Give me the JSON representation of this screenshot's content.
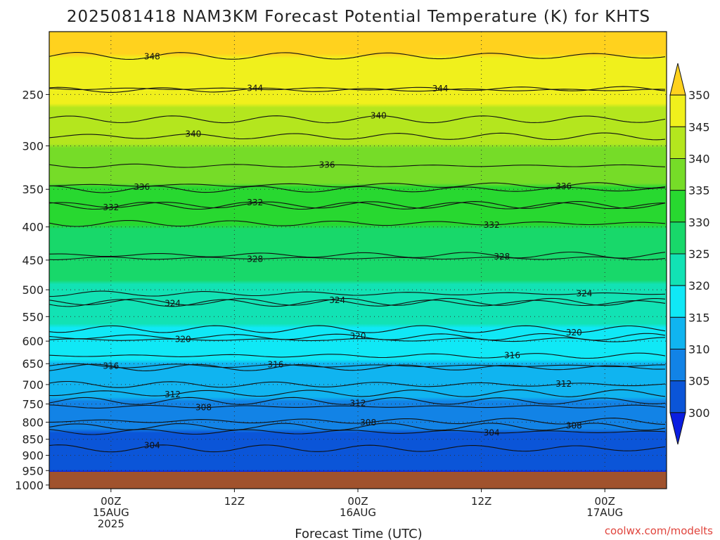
{
  "chart_data": {
    "type": "heatmap",
    "title": "2025081418 NAM3KM Forecast Potential Temperature (K) for KHTS",
    "xlabel": "Forecast Time (UTC)",
    "ylabel": "",
    "credit": "coolwx.com/modelts",
    "x_ticks": [
      {
        "hour": 6,
        "lines": [
          "00Z",
          "15AUG",
          "2025"
        ]
      },
      {
        "hour": 18,
        "lines": [
          "12Z"
        ]
      },
      {
        "hour": 30,
        "lines": [
          "00Z",
          "16AUG"
        ]
      },
      {
        "hour": 42,
        "lines": [
          "12Z"
        ]
      },
      {
        "hour": 54,
        "lines": [
          "00Z",
          "17AUG"
        ]
      }
    ],
    "x_range_hours": [
      0,
      60
    ],
    "y_ticks_hpa": [
      250,
      300,
      350,
      400,
      450,
      500,
      550,
      600,
      650,
      700,
      750,
      800,
      850,
      900,
      950,
      1000
    ],
    "y_range_hpa": [
      200,
      1013
    ],
    "grid": true,
    "colorbar": {
      "levels": [
        300,
        305,
        310,
        315,
        320,
        325,
        330,
        335,
        340,
        345,
        350
      ],
      "colors": [
        "#0a1ee0",
        "#0b55d8",
        "#1283e6",
        "#10b4f0",
        "#10e8f6",
        "#12e2b4",
        "#18d86a",
        "#28d830",
        "#76dc28",
        "#b4e61e",
        "#f0f01c",
        "#ffd21e"
      ],
      "units": "K"
    },
    "contour_interval": 4,
    "contours": [
      {
        "value": 348,
        "pressure": 218,
        "label_hour": 10
      },
      {
        "value": 344,
        "pressure": 246,
        "label_hour": 20
      },
      {
        "value": 344,
        "pressure": 245,
        "label_hour": 38
      },
      {
        "value": 340,
        "pressure": 290,
        "label_hour": 14
      },
      {
        "value": 340,
        "pressure": 273,
        "label_hour": 32
      },
      {
        "value": 336,
        "pressure": 350,
        "label_hour": 9
      },
      {
        "value": 336,
        "pressure": 322,
        "label_hour": 27
      },
      {
        "value": 336,
        "pressure": 345,
        "label_hour": 50
      },
      {
        "value": 332,
        "pressure": 370,
        "label_hour": 6
      },
      {
        "value": 332,
        "pressure": 371,
        "label_hour": 20
      },
      {
        "value": 332,
        "pressure": 395,
        "label_hour": 43
      },
      {
        "value": 328,
        "pressure": 447,
        "label_hour": 20
      },
      {
        "value": 328,
        "pressure": 442,
        "label_hour": 44
      },
      {
        "value": 324,
        "pressure": 522,
        "label_hour": 12
      },
      {
        "value": 324,
        "pressure": 524,
        "label_hour": 28
      },
      {
        "value": 324,
        "pressure": 507,
        "label_hour": 52
      },
      {
        "value": 320,
        "pressure": 597,
        "label_hour": 13
      },
      {
        "value": 320,
        "pressure": 591,
        "label_hour": 30
      },
      {
        "value": 320,
        "pressure": 575,
        "label_hour": 51
      },
      {
        "value": 316,
        "pressure": 659,
        "label_hour": 6
      },
      {
        "value": 316,
        "pressure": 655,
        "label_hour": 22
      },
      {
        "value": 316,
        "pressure": 632,
        "label_hour": 45
      },
      {
        "value": 312,
        "pressure": 722,
        "label_hour": 12
      },
      {
        "value": 312,
        "pressure": 742,
        "label_hour": 30
      },
      {
        "value": 312,
        "pressure": 700,
        "label_hour": 50
      },
      {
        "value": 308,
        "pressure": 757,
        "label_hour": 15
      },
      {
        "value": 308,
        "pressure": 797,
        "label_hour": 31
      },
      {
        "value": 308,
        "pressure": 813,
        "label_hour": 51
      },
      {
        "value": 304,
        "pressure": 878,
        "label_hour": 10
      },
      {
        "value": 304,
        "pressure": 828,
        "label_hour": 43
      }
    ]
  }
}
